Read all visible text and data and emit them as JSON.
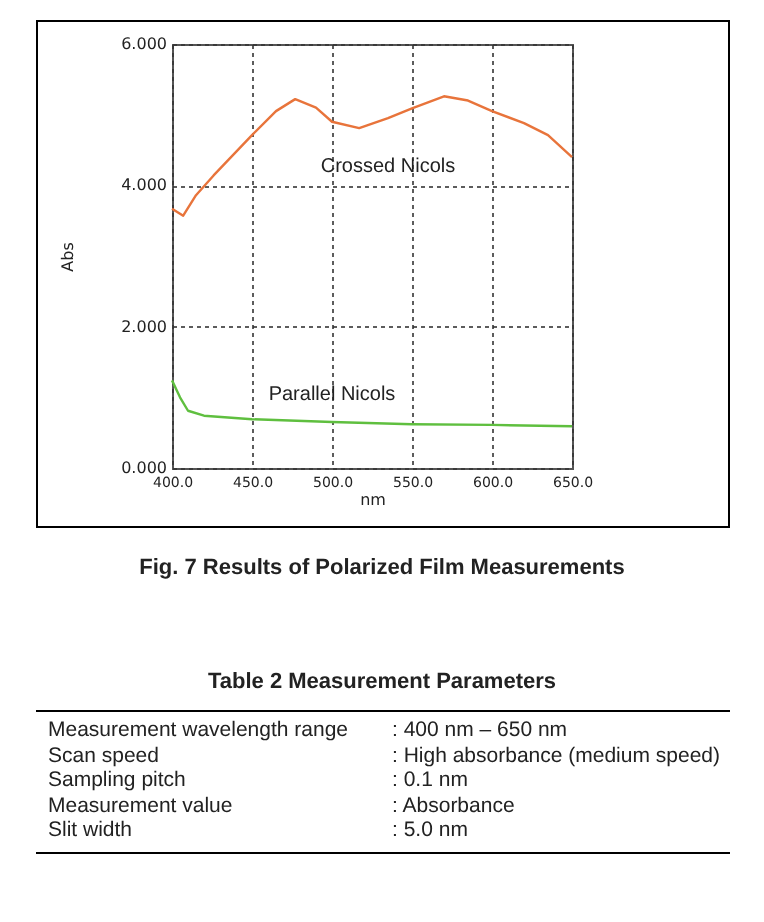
{
  "chart_data": {
    "type": "line",
    "title": "Fig. 7  Results of Polarized Film Measurements",
    "xlabel": "nm",
    "ylabel": "Abs",
    "series": [
      {
        "name": "Crossed Nicols",
        "color": "#e8743b",
        "x": [
          400,
          407,
          415,
          426,
          450,
          465,
          477,
          490,
          500,
          517,
          535,
          550,
          570,
          585,
          600,
          620,
          635,
          650
        ],
        "values": [
          3.67,
          3.57,
          3.86,
          4.14,
          4.71,
          5.05,
          5.22,
          5.1,
          4.9,
          4.81,
          4.95,
          5.09,
          5.26,
          5.2,
          5.05,
          4.88,
          4.71,
          4.4
        ]
      },
      {
        "name": "Parallel Nicols",
        "color": "#5fbf3f",
        "x": [
          400,
          405,
          410,
          420,
          450,
          500,
          550,
          600,
          650
        ],
        "values": [
          1.24,
          1.0,
          0.81,
          0.74,
          0.69,
          0.65,
          0.62,
          0.61,
          0.59
        ]
      }
    ],
    "xlim": [
      400,
      650
    ],
    "xticks": [
      {
        "value": 400,
        "label": "400.0"
      },
      {
        "value": 450,
        "label": "450.0"
      },
      {
        "value": 500,
        "label": "500.0"
      },
      {
        "value": 550,
        "label": "550.0"
      },
      {
        "value": 600,
        "label": "600.0"
      },
      {
        "value": 650,
        "label": "650.0"
      }
    ],
    "ylim": [
      0,
      6
    ],
    "yticks": [
      {
        "value": 0,
        "label": "0.000"
      },
      {
        "value": 2,
        "label": "2.000"
      },
      {
        "value": 4,
        "label": "4.000"
      },
      {
        "value": 6,
        "label": "6.000"
      }
    ],
    "grid": true,
    "legend": false,
    "line_style": "solid",
    "marker": "none",
    "annotations": [
      "Table 2  Measurement Parameters",
      "Measurement wavelength range : 400 nm – 650 nm",
      "Scan speed : High absorbance (medium speed)",
      "Sampling pitch : 0.1 nm",
      "Measurement value : Absorbance",
      "Slit width : 5.0 nm"
    ]
  }
}
